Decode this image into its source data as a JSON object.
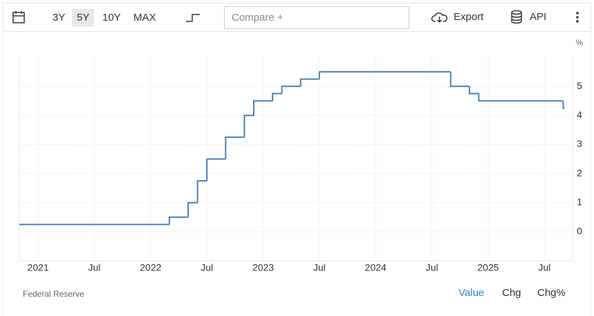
{
  "toolbar": {
    "ranges": [
      "3Y",
      "5Y",
      "10Y",
      "MAX"
    ],
    "active_range": "5Y",
    "compare": "Compare +",
    "export": "Export",
    "api": "API"
  },
  "chart_data": {
    "type": "step-line",
    "y_unit": "%",
    "color": "#4a7fb5",
    "x": [
      "2020-11",
      "2022-03",
      "2022-05",
      "2022-06",
      "2022-07",
      "2022-09",
      "2022-11",
      "2022-12",
      "2023-02",
      "2023-03",
      "2023-05",
      "2023-07",
      "2024-09",
      "2024-11",
      "2024-12",
      "2025-09"
    ],
    "values": [
      0.25,
      0.5,
      1,
      1.75,
      2.5,
      3.25,
      4,
      4.5,
      4.75,
      5,
      5.25,
      5.5,
      5,
      4.75,
      4.5,
      4.25
    ],
    "xlim": [
      "2020-11",
      "2025-10"
    ],
    "xticks": [
      {
        "value": "2021-01",
        "label": "2021"
      },
      {
        "value": "2021-07",
        "label": "Jul"
      },
      {
        "value": "2022-01",
        "label": "2022"
      },
      {
        "value": "2022-07",
        "label": "Jul"
      },
      {
        "value": "2023-01",
        "label": "2023"
      },
      {
        "value": "2023-07",
        "label": "Jul"
      },
      {
        "value": "2024-01",
        "label": "2024"
      },
      {
        "value": "2024-07",
        "label": "Jul"
      },
      {
        "value": "2025-01",
        "label": "2025"
      },
      {
        "value": "2025-07",
        "label": "Jul"
      }
    ],
    "ylim": [
      -1,
      6
    ],
    "yticks": [
      0,
      1,
      2,
      3,
      4,
      5
    ],
    "grid": true
  },
  "footer": {
    "source": "Federal Reserve",
    "modes": [
      "Value",
      "Chg",
      "Chg%"
    ],
    "active_mode": "Value"
  }
}
